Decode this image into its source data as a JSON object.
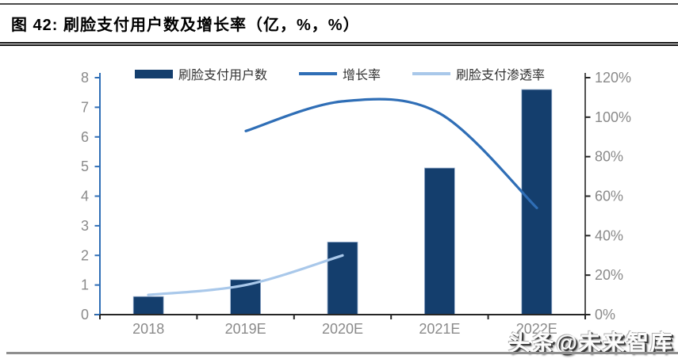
{
  "header": {
    "title": "图 42:  刷脸支付用户数及增长率（亿，%，%）"
  },
  "chart_data": {
    "type": "bar+line",
    "title": "刷脸支付用户数及增长率（亿，%，%）",
    "categories": [
      "2018",
      "2019E",
      "2020E",
      "2021E",
      "2022E"
    ],
    "series": [
      {
        "name": "刷脸支付用户数",
        "kind": "bar",
        "axis": "left",
        "unit": "亿",
        "color": "#143e6d",
        "values": [
          0.61,
          1.18,
          2.45,
          4.95,
          7.6
        ]
      },
      {
        "name": "增长率",
        "kind": "line",
        "axis": "right",
        "unit": "%",
        "color": "#2f6eb6",
        "values": [
          null,
          93,
          108,
          102,
          54
        ]
      },
      {
        "name": "刷脸支付渗透率",
        "kind": "line",
        "axis": "right",
        "unit": "%",
        "color": "#a9c8ea",
        "values": [
          10,
          15,
          30,
          null,
          null
        ]
      }
    ],
    "left_axis": {
      "range": [
        0,
        8
      ],
      "tick_labels": [
        "0",
        "1",
        "2",
        "3",
        "4",
        "5",
        "6",
        "7",
        "8"
      ],
      "axis_color": "#2f6eb6",
      "label_color": "#8a8a8a"
    },
    "right_axis": {
      "range": [
        0,
        120
      ],
      "tick_labels": [
        "0%",
        "20%",
        "40%",
        "60%",
        "80%",
        "100%",
        "120%"
      ],
      "axis_color": "#262626",
      "label_color": "#8a8a8a"
    },
    "x_axis": {
      "axis_color": "#262626",
      "label_color": "#8a8a8a"
    },
    "legend_position": "top",
    "grid": false
  },
  "watermark": "头条@未来智库"
}
